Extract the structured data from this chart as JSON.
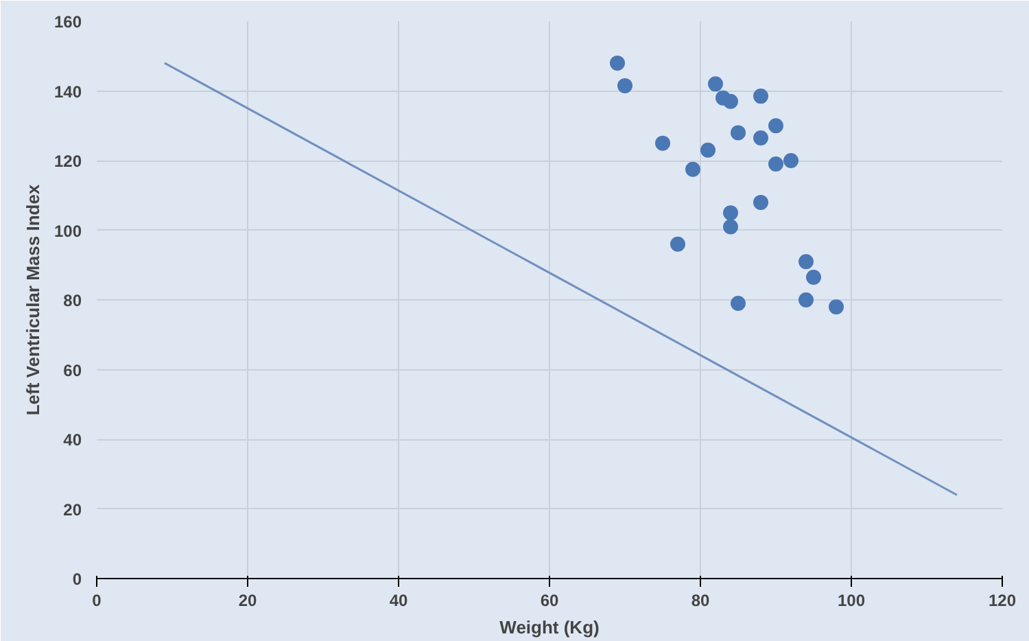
{
  "chart_data": {
    "type": "scatter",
    "xlabel": "Weight (Kg)",
    "ylabel": "Left Ventricular Mass Index",
    "xlim": [
      0,
      120
    ],
    "xticks": [
      0,
      20,
      40,
      60,
      80,
      100,
      120
    ],
    "ylim": [
      0,
      160
    ],
    "yticks": [
      0,
      20,
      40,
      60,
      80,
      100,
      120,
      140,
      160
    ],
    "grid": true,
    "marker": "circle",
    "series": [
      {
        "color": "#4a78b5",
        "x": [
          69,
          70,
          75,
          77,
          79,
          81,
          82,
          83,
          84,
          84,
          84,
          85,
          85,
          88,
          88,
          88,
          90,
          90,
          92,
          94,
          95,
          94,
          98
        ],
        "values": [
          148,
          141.5,
          125,
          96,
          117.5,
          123,
          142,
          138,
          137,
          105,
          101,
          128,
          79,
          138.5,
          126.5,
          108,
          130,
          119,
          120,
          91,
          86.5,
          80,
          78
        ]
      },
      {
        "type": "line",
        "color": "#6f8fbf",
        "marker": "none",
        "x": [
          9,
          114
        ],
        "values": [
          148,
          24
        ]
      }
    ]
  }
}
